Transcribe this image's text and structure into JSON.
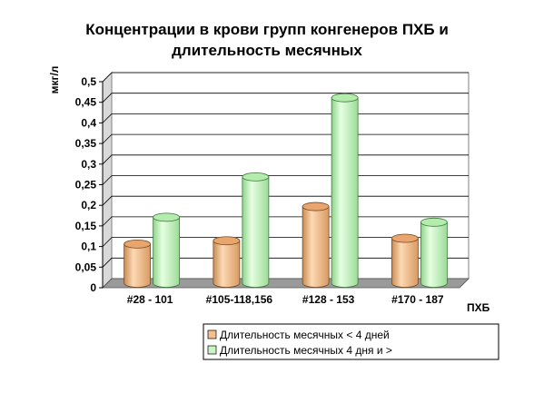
{
  "chart_data": {
    "type": "bar",
    "title_lines": [
      "Концентрации в крови групп конгенеров ПХБ и",
      "длительность месячных"
    ],
    "ylabel": "мкг/л",
    "xlabel": "ПХБ",
    "categories": [
      "#28 - 101",
      "#105-118,156",
      "#128 - 153",
      "#170 - 187"
    ],
    "ylim": [
      0,
      0.5
    ],
    "yticks": [
      "0",
      "0,05",
      "0,1",
      "0,15",
      "0,2",
      "0,25",
      "0,3",
      "0,35",
      "0,4",
      "0,45",
      "0,5"
    ],
    "grid": true,
    "legend_position": "bottom-right",
    "series": [
      {
        "name": "Длительность месячных < 4 дней",
        "values": [
          0.095,
          0.103,
          0.186,
          0.109
        ],
        "color": "#f4c08e"
      },
      {
        "name": "Длительность месячных 4 дня и >",
        "values": [
          0.16,
          0.258,
          0.45,
          0.148
        ],
        "color": "#c8f5c3"
      }
    ]
  }
}
